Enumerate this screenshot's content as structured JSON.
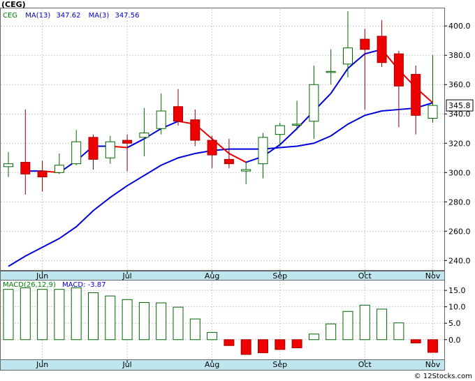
{
  "chart_data": [
    {
      "type": "candlestick",
      "title": "(CEG)",
      "legend": [
        {
          "label": "CEG",
          "color": "#008000"
        },
        {
          "label": "MA(13)",
          "value": "347.62",
          "color": "#0000cc"
        },
        {
          "label": "MA(3)",
          "value": "347.56",
          "color": "#0000cc"
        }
      ],
      "y_ticks": [
        "400.0",
        "380.0",
        "360.0",
        "340.0",
        "320.0",
        "300.0",
        "280.0",
        "260.0",
        "240.0"
      ],
      "y_tick_values": [
        400,
        380,
        360,
        340,
        320,
        300,
        280,
        260,
        240
      ],
      "ylim": [
        233,
        412
      ],
      "x_tick_labels": [
        "Jun",
        "Jul",
        "Aug",
        "Sep",
        "Oct",
        "Nov"
      ],
      "x_tick_positions": [
        2,
        7,
        12,
        16,
        21,
        25
      ],
      "last_price": "345.8",
      "last_price_value": 345.8,
      "candles": [
        {
          "o": 304,
          "h": 314,
          "l": 297,
          "c": 306
        },
        {
          "o": 307,
          "h": 343,
          "l": 285,
          "c": 299
        },
        {
          "o": 301,
          "h": 308,
          "l": 287,
          "c": 297
        },
        {
          "o": 300,
          "h": 313,
          "l": 299,
          "c": 305
        },
        {
          "o": 306,
          "h": 329,
          "l": 305,
          "c": 321
        },
        {
          "o": 324,
          "h": 326,
          "l": 302,
          "c": 309
        },
        {
          "o": 310,
          "h": 325,
          "l": 306,
          "c": 321
        },
        {
          "o": 322,
          "h": 326,
          "l": 301,
          "c": 320
        },
        {
          "o": 324,
          "h": 344,
          "l": 311,
          "c": 327
        },
        {
          "o": 330,
          "h": 354,
          "l": 326,
          "c": 342
        },
        {
          "o": 345,
          "h": 357,
          "l": 332,
          "c": 335
        },
        {
          "o": 336,
          "h": 343,
          "l": 318,
          "c": 322
        },
        {
          "o": 322,
          "h": 325,
          "l": 303,
          "c": 312
        },
        {
          "o": 309,
          "h": 323,
          "l": 303,
          "c": 306
        },
        {
          "o": 301,
          "h": 307,
          "l": 292,
          "c": 302
        },
        {
          "o": 306,
          "h": 327,
          "l": 296,
          "c": 324
        },
        {
          "o": 326,
          "h": 334,
          "l": 318,
          "c": 332
        },
        {
          "o": 333,
          "h": 349,
          "l": 329,
          "c": 333
        },
        {
          "o": 335,
          "h": 373,
          "l": 323,
          "c": 360
        },
        {
          "o": 369,
          "h": 384,
          "l": 360,
          "c": 369
        },
        {
          "o": 374,
          "h": 410,
          "l": 365,
          "c": 385
        },
        {
          "o": 391,
          "h": 398,
          "l": 343,
          "c": 384
        },
        {
          "o": 393,
          "h": 404,
          "l": 372,
          "c": 375
        },
        {
          "o": 381,
          "h": 383,
          "l": 331,
          "c": 359
        },
        {
          "o": 367,
          "h": 373,
          "l": 326,
          "c": 339
        },
        {
          "o": 337,
          "h": 380,
          "l": 334,
          "c": 345.8
        }
      ],
      "ma13": [
        236,
        243,
        249,
        255,
        263,
        274,
        283,
        291,
        298,
        305,
        310,
        313,
        315,
        316,
        316,
        316,
        317,
        318,
        320,
        325,
        333,
        339,
        342,
        343,
        344,
        347.62
      ],
      "ma3": [
        null,
        301,
        301,
        300,
        308,
        318,
        318,
        317,
        323,
        330,
        335,
        333,
        323,
        313,
        307,
        311,
        319,
        330,
        342,
        354,
        371,
        381,
        384,
        370,
        358,
        347.56
      ]
    },
    {
      "type": "bar",
      "title": "MACD(26,12,9)",
      "legend": [
        {
          "label": "MACD(26,12,9)",
          "color": "#008000"
        },
        {
          "label": "MACD:",
          "value": "-3.87",
          "color": "#0000cc"
        }
      ],
      "y_ticks": [
        "15.0",
        "10.0",
        "5.0",
        "0.0"
      ],
      "y_tick_values": [
        15,
        10,
        5,
        0
      ],
      "ylim": [
        -6,
        18
      ],
      "x_tick_labels": [
        "Jun",
        "Jul",
        "Aug",
        "Sep",
        "Oct",
        "Nov"
      ],
      "x_tick_positions": [
        2,
        7,
        12,
        16,
        21,
        25
      ],
      "values": [
        15.3,
        15.8,
        15.3,
        15.3,
        15.8,
        14.3,
        13.3,
        12.2,
        11.3,
        11.2,
        9.9,
        6.3,
        2.2,
        -1.8,
        -4.5,
        -4.0,
        -3.0,
        -2.5,
        1.7,
        4.8,
        8.6,
        10.5,
        9.3,
        5.1,
        -1.0,
        -3.87
      ]
    }
  ],
  "footer": {
    "copyright": "© 12Stocks.com"
  }
}
